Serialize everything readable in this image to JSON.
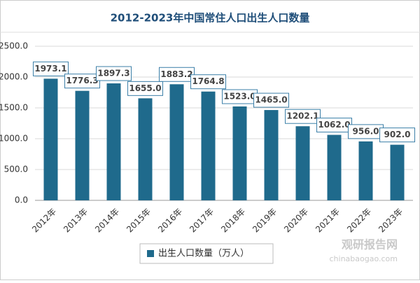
{
  "chart_data": {
    "type": "bar",
    "title": "2012-2023年中国常住人口出生人口数量",
    "categories": [
      "2012年",
      "2013年",
      "2014年",
      "2015年",
      "2016年",
      "2017年",
      "2018年",
      "2019年",
      "2020年",
      "2021年",
      "2022年",
      "2023年"
    ],
    "series": [
      {
        "name": "出生人口数量（万人）",
        "color": "#1f6a8c",
        "values": [
          1973.1,
          1776.3,
          1897.3,
          1655,
          1883.2,
          1764.8,
          1523,
          1465,
          1202.1,
          1062,
          956,
          902
        ],
        "value_labels": [
          "1973.1",
          "1776.3",
          "1897.3",
          "1655.0",
          "1883.2",
          "1764.8",
          "1523.0",
          "1465.0",
          "1202.1",
          "1062.0",
          "956.0",
          "902.0"
        ]
      }
    ],
    "ylim": [
      0,
      2500
    ],
    "yticks": [
      {
        "value": 0,
        "label": "0.0"
      },
      {
        "value": 500,
        "label": "500.0"
      },
      {
        "value": 1000,
        "label": "1000.0"
      },
      {
        "value": 1500,
        "label": "1500.0"
      },
      {
        "value": 2000,
        "label": "2000.0"
      },
      {
        "value": 2500,
        "label": "2500.0"
      }
    ],
    "grid": true,
    "legend": "bottom"
  },
  "watermark": {
    "name": "观研报告网",
    "url": "chinabaogao.com"
  }
}
